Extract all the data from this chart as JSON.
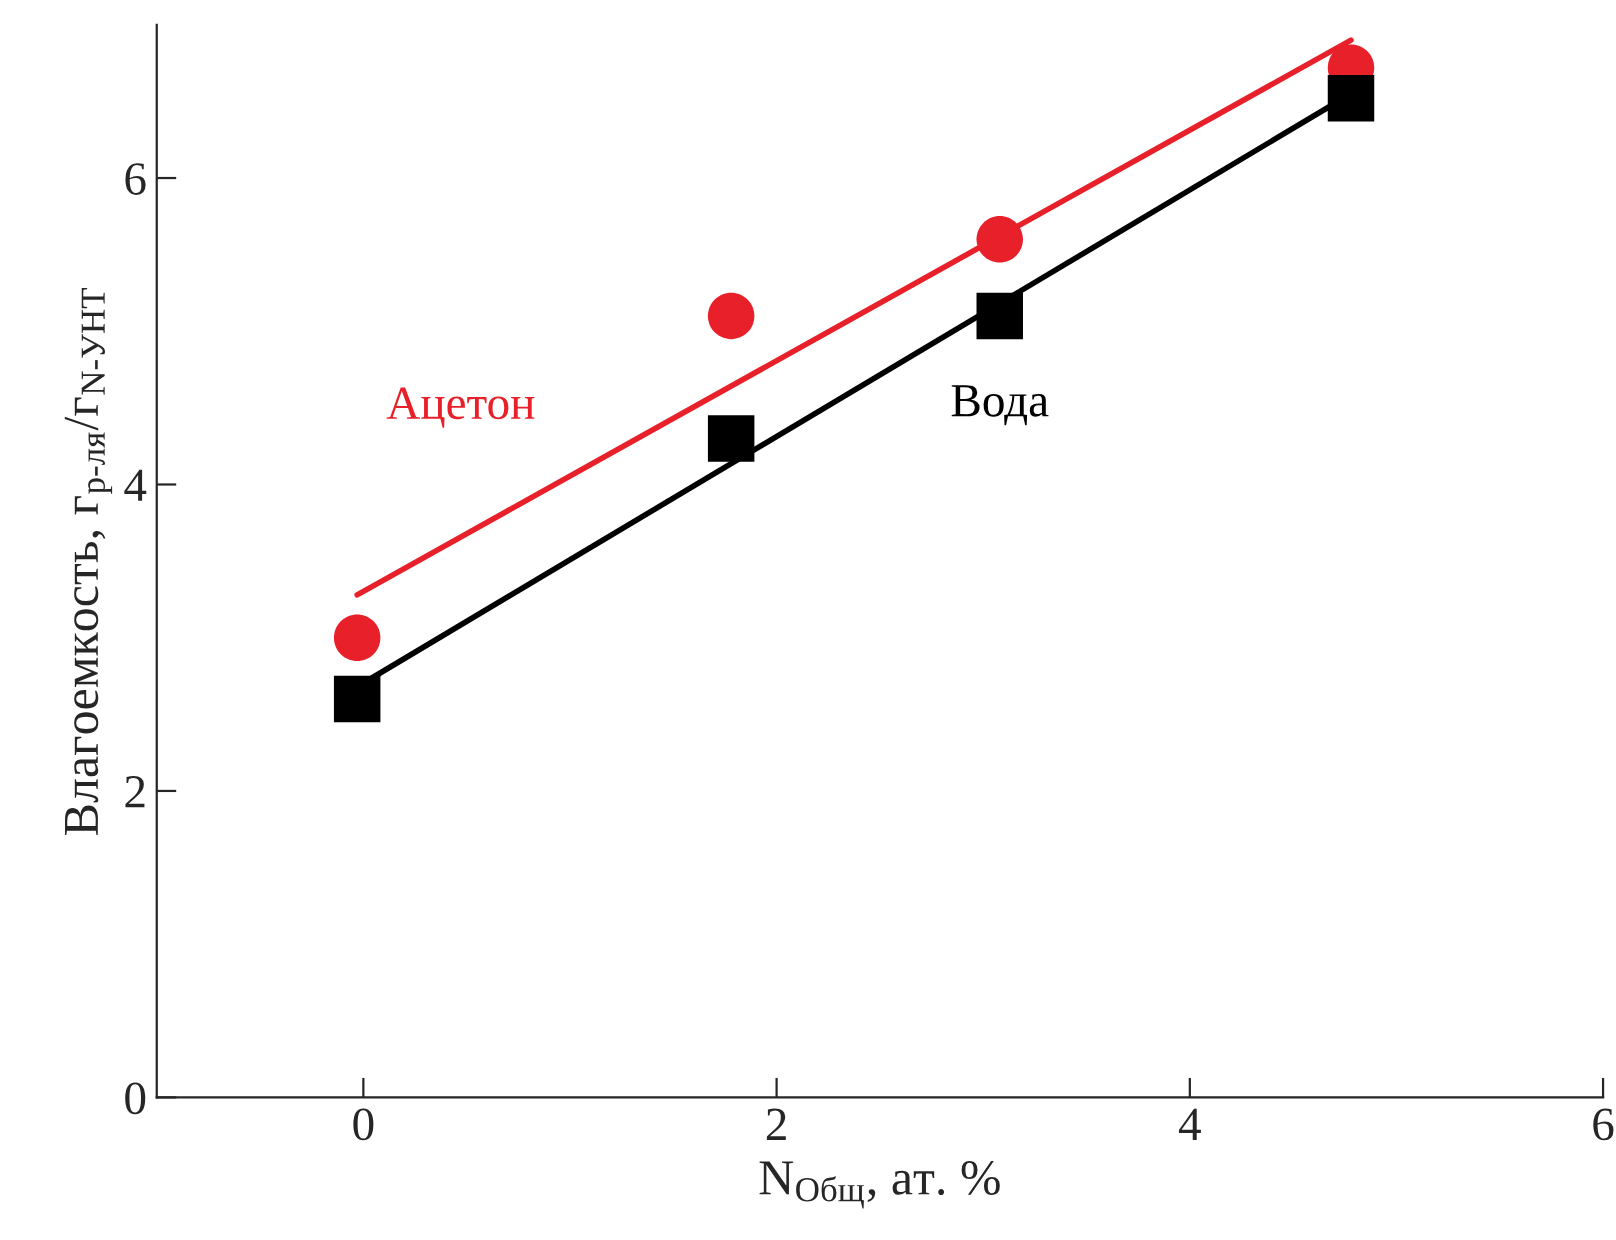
{
  "chart_data": {
    "type": "scatter",
    "xlabel": "N$_{Общ}$, ат. %",
    "ylabel": "Влагоемкость, г$_{р-ля}$/г$_{N-УНТ}$",
    "series": [
      {
        "name": "Ацетон",
        "color": "#e8202a",
        "marker": "circle",
        "x": [
          -0.03,
          1.78,
          3.08,
          4.78
        ],
        "values": [
          3.0,
          5.1,
          5.6,
          6.72
        ]
      },
      {
        "name": "Вода",
        "color": "#000000",
        "marker": "square",
        "x": [
          -0.03,
          1.78,
          3.08,
          4.78
        ],
        "values": [
          2.6,
          4.3,
          5.1,
          6.52
        ]
      },
      {
        "type": "line",
        "color": "#e8202a",
        "x": [
          -0.03,
          4.78
        ],
        "values": [
          3.28,
          6.9
        ]
      },
      {
        "type": "line",
        "color": "#000000",
        "x": [
          -0.03,
          4.78
        ],
        "values": [
          2.68,
          6.55
        ]
      }
    ],
    "xlim": [
      -1,
      6
    ],
    "xticks": [
      0,
      2,
      4,
      6
    ],
    "ylim": [
      0,
      7
    ],
    "yticks": [
      0,
      2,
      4,
      6
    ],
    "grid": false,
    "legend": false
  }
}
